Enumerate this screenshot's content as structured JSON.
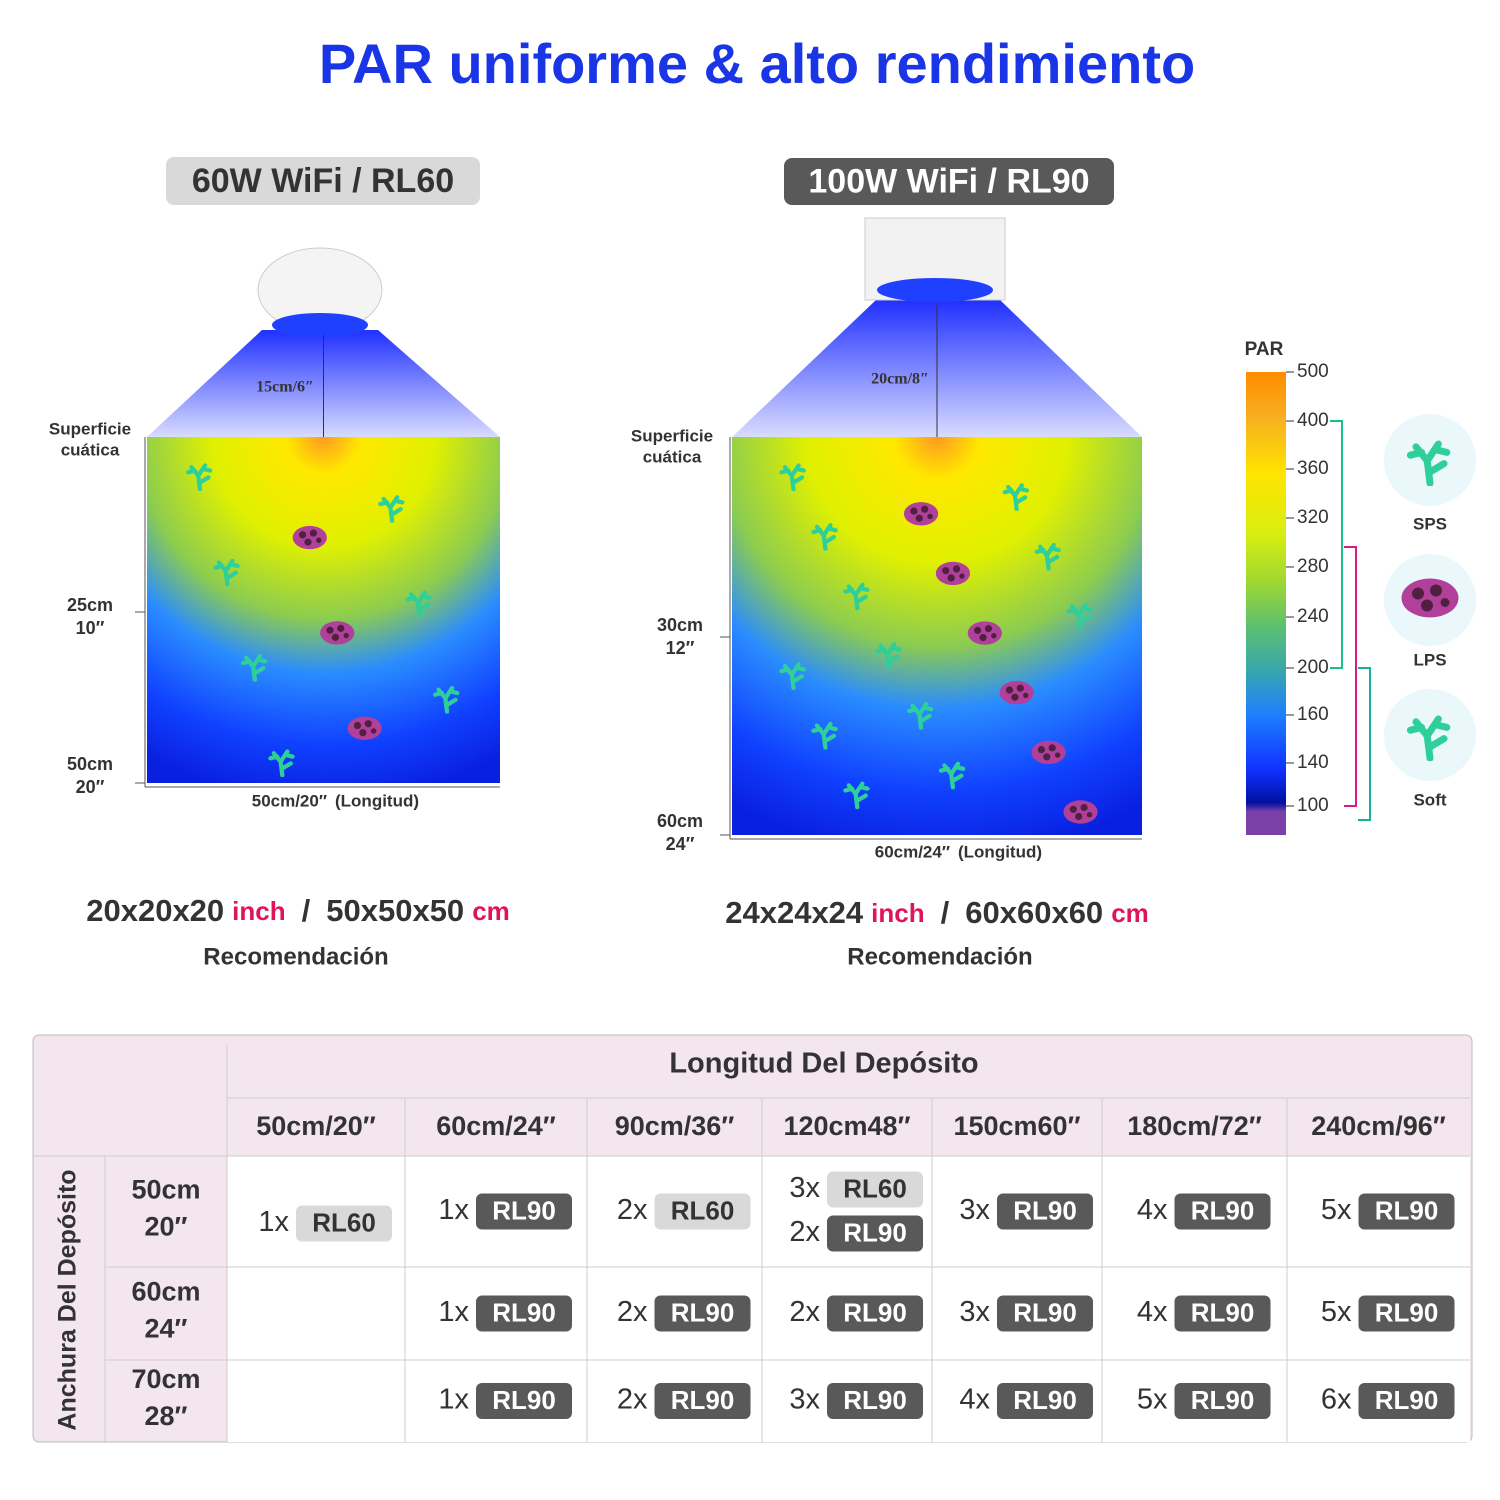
{
  "title": "PAR uniforme & alto rendimiento",
  "panels": [
    {
      "model": "60W WiFi / RL60",
      "height_label": "15cm/6″",
      "surface_label": [
        "Superficie",
        "cuática"
      ],
      "depth_labels": [
        [
          "25cm",
          "10″"
        ],
        [
          "50cm",
          "20″"
        ]
      ],
      "length_label": "50cm/20″",
      "length_note": "(Longitud)",
      "size_inch": "20x20x20",
      "inch_unit": "inch",
      "separator": "/",
      "size_cm": "50x50x50",
      "cm_unit": "cm",
      "recommendation": "Recomendación"
    },
    {
      "model": "100W WiFi / RL90",
      "height_label": "20cm/8″",
      "surface_label": [
        "Superficie",
        "cuática"
      ],
      "depth_labels": [
        [
          "30cm",
          "12″"
        ],
        [
          "60cm",
          "24″"
        ]
      ],
      "length_label": "60cm/24″",
      "length_note": "(Longitud)",
      "size_inch": "24x24x24",
      "inch_unit": "inch",
      "separator": "/",
      "size_cm": "60x60x60",
      "cm_unit": "cm",
      "recommendation": "Recomendación"
    }
  ],
  "legend": {
    "title": "PAR",
    "ticks": [
      500,
      400,
      360,
      320,
      280,
      240,
      200,
      160,
      140,
      100
    ],
    "corals": [
      "SPS",
      "LPS",
      "Soft"
    ]
  },
  "table": {
    "header": "Longitud Del Depósito",
    "row_header": "Anchura Del Depósito",
    "columns": [
      "50cm/20″",
      "60cm/24″",
      "90cm/36″",
      "120cm48″",
      "150cm60″",
      "180cm/72″",
      "240cm/96″"
    ],
    "rows": [
      {
        "label": [
          "50cm",
          "20″"
        ],
        "cells": [
          [
            {
              "count": "1x",
              "model": "RL60"
            }
          ],
          [
            {
              "count": "1x",
              "model": "RL90"
            }
          ],
          [
            {
              "count": "2x",
              "model": "RL60"
            }
          ],
          [
            {
              "count": "3x",
              "model": "RL60"
            },
            {
              "count": "2x",
              "model": "RL90"
            }
          ],
          [
            {
              "count": "3x",
              "model": "RL90"
            }
          ],
          [
            {
              "count": "4x",
              "model": "RL90"
            }
          ],
          [
            {
              "count": "5x",
              "model": "RL90"
            }
          ]
        ]
      },
      {
        "label": [
          "60cm",
          "24″"
        ],
        "cells": [
          [],
          [
            {
              "count": "1x",
              "model": "RL90"
            }
          ],
          [
            {
              "count": "2x",
              "model": "RL90"
            }
          ],
          [
            {
              "count": "2x",
              "model": "RL90"
            }
          ],
          [
            {
              "count": "3x",
              "model": "RL90"
            }
          ],
          [
            {
              "count": "4x",
              "model": "RL90"
            }
          ],
          [
            {
              "count": "5x",
              "model": "RL90"
            }
          ]
        ]
      },
      {
        "label": [
          "70cm",
          "28″"
        ],
        "cells": [
          [],
          [
            {
              "count": "1x",
              "model": "RL90"
            }
          ],
          [
            {
              "count": "2x",
              "model": "RL90"
            }
          ],
          [
            {
              "count": "3x",
              "model": "RL90"
            }
          ],
          [
            {
              "count": "4x",
              "model": "RL90"
            }
          ],
          [
            {
              "count": "5x",
              "model": "RL90"
            }
          ],
          [
            {
              "count": "6x",
              "model": "RL90"
            }
          ]
        ]
      }
    ]
  }
}
